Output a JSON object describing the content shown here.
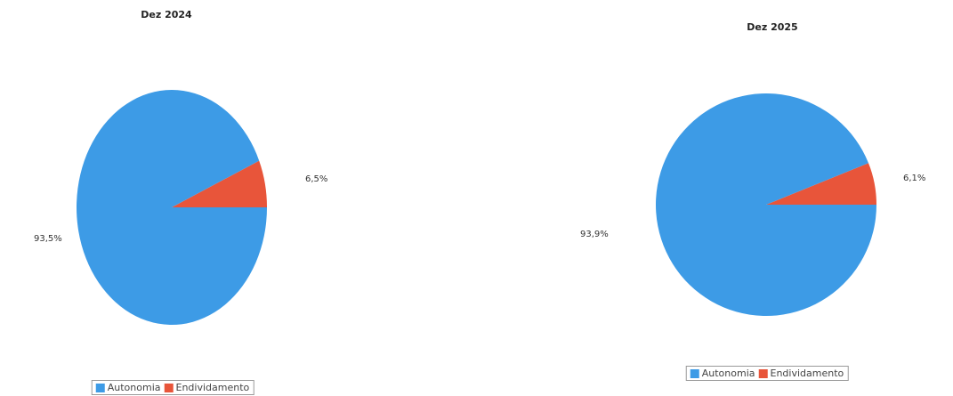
{
  "colors": {
    "autonomia": "#3d9be6",
    "endividamento": "#e8553a"
  },
  "chart_data": [
    {
      "type": "pie",
      "title": "Dez 2024",
      "slices": [
        {
          "label": "Autonomia",
          "value": 93.5,
          "display": "93,5%",
          "color": "#3d9be6"
        },
        {
          "label": "Endividamento",
          "value": 6.5,
          "display": "6,5%",
          "color": "#e8553a"
        }
      ],
      "legend": [
        "Autonomia",
        "Endividamento"
      ],
      "legend_position": "bottom"
    },
    {
      "type": "pie",
      "title": "Dez 2025",
      "slices": [
        {
          "label": "Autonomia",
          "value": 93.9,
          "display": "93,9%",
          "color": "#3d9be6"
        },
        {
          "label": "Endividamento",
          "value": 6.1,
          "display": "6,1%",
          "color": "#e8553a"
        }
      ],
      "legend": [
        "Autonomia",
        "Endividamento"
      ],
      "legend_position": "bottom"
    }
  ]
}
